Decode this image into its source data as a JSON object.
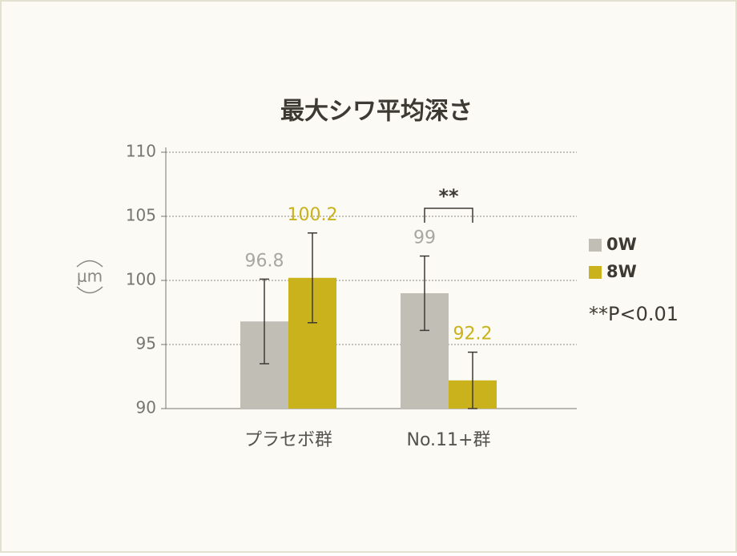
{
  "chart_data": {
    "type": "bar",
    "title": "最大シワ平均深さ",
    "y_label": "μm",
    "categories": [
      "プラセボ群",
      "No.11+群"
    ],
    "series": [
      {
        "name": "0W",
        "color": "#c1beb6",
        "label_color": "#a9a7a1",
        "values": [
          96.8,
          99.0
        ],
        "errors": [
          3.3,
          2.9
        ]
      },
      {
        "name": "8W",
        "color": "#c9b21b",
        "label_color": "#c9b21b",
        "values": [
          100.2,
          92.2
        ],
        "errors": [
          3.5,
          2.2
        ]
      }
    ],
    "ylim": [
      90,
      110
    ],
    "yticks": [
      90,
      95,
      100,
      105,
      110
    ],
    "grid": true,
    "legend": "right",
    "significance": {
      "label": "**",
      "category": 1
    },
    "note": "**P<0.01"
  }
}
